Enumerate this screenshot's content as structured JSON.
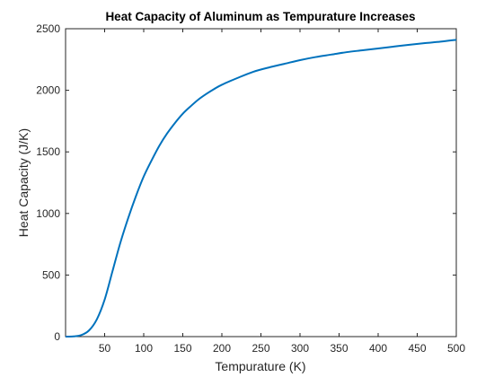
{
  "chart_data": {
    "type": "line",
    "title": "Heat Capacity of Aluminum as Tempurature Increases",
    "xlabel": "Tempurature (K)",
    "ylabel": "Heat Capacity (J/K)",
    "xlim": [
      0,
      500
    ],
    "ylim": [
      0,
      2500
    ],
    "xticks": [
      50,
      100,
      150,
      200,
      250,
      300,
      350,
      400,
      450,
      500
    ],
    "yticks": [
      0,
      500,
      1000,
      1500,
      2000,
      2500
    ],
    "grid": false,
    "legend": "none",
    "series": [
      {
        "color": "#0072BD",
        "x": [
          0,
          10,
          20,
          30,
          40,
          50,
          60,
          70,
          80,
          90,
          100,
          110,
          120,
          130,
          140,
          150,
          160,
          170,
          180,
          190,
          200,
          220,
          240,
          260,
          280,
          300,
          320,
          340,
          360,
          380,
          400,
          420,
          440,
          460,
          480,
          500
        ],
        "y": [
          0,
          2,
          12,
          50,
          140,
          300,
          530,
          760,
          960,
          1140,
          1300,
          1430,
          1550,
          1650,
          1735,
          1810,
          1870,
          1925,
          1970,
          2010,
          2045,
          2100,
          2150,
          2185,
          2215,
          2245,
          2270,
          2290,
          2310,
          2325,
          2340,
          2355,
          2370,
          2383,
          2395,
          2410
        ]
      }
    ]
  }
}
